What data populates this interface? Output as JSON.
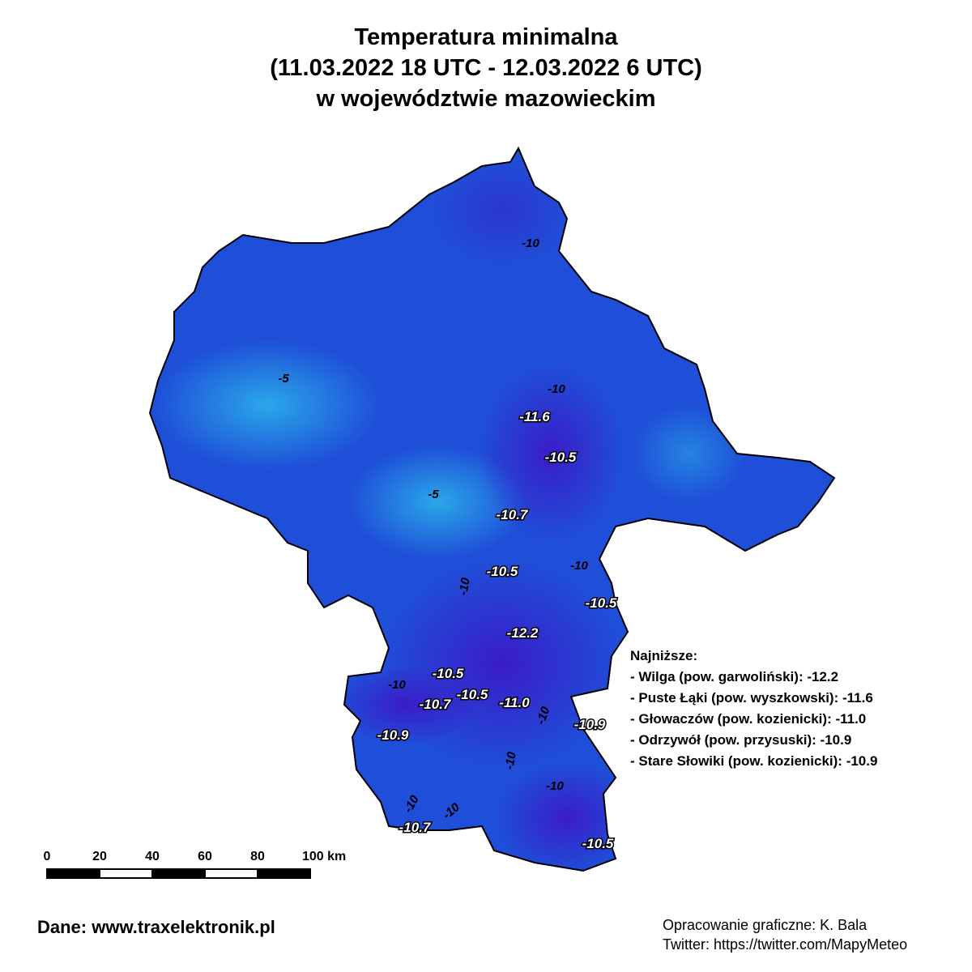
{
  "title": [
    "Temperatura minimalna",
    "(11.03.2022 18 UTC - 12.03.2022 6 UTC)",
    "w województwie mazowieckim"
  ],
  "map_labels": [
    "-10",
    "-5",
    "-10",
    "-11.6",
    "-10.5",
    "-5",
    "-10.7",
    "-10",
    "-10.5",
    "-10",
    "-10.5",
    "-12.2",
    "-10.5",
    "-10",
    "-10.5",
    "-10.7",
    "-11.0",
    "-10",
    "-10.9",
    "-10.9",
    "-10",
    "-10",
    "-10",
    "-10",
    "-10.7",
    "-10.5"
  ],
  "lowest": {
    "heading": "Najniższe:",
    "items": [
      "- Wilga (pow. garwoliński): -12.2",
      "- Puste Łąki (pow. wyszkowski): -11.6",
      "- Głowaczów (pow. kozienicki): -11.0",
      "- Odrzywół (pow. przysuski): -10.9",
      "- Stare Słowiki (pow. kozienicki): -10.9"
    ]
  },
  "scale_bar": {
    "labels": [
      "0",
      "20",
      "40",
      "60",
      "80",
      "100 km"
    ]
  },
  "footer": {
    "source": "Dane: www.traxelektronik.pl",
    "credit": "Opracowanie graficzne: K. Bala",
    "twitter": "Twitter: https://twitter.com/MapyMeteo"
  }
}
